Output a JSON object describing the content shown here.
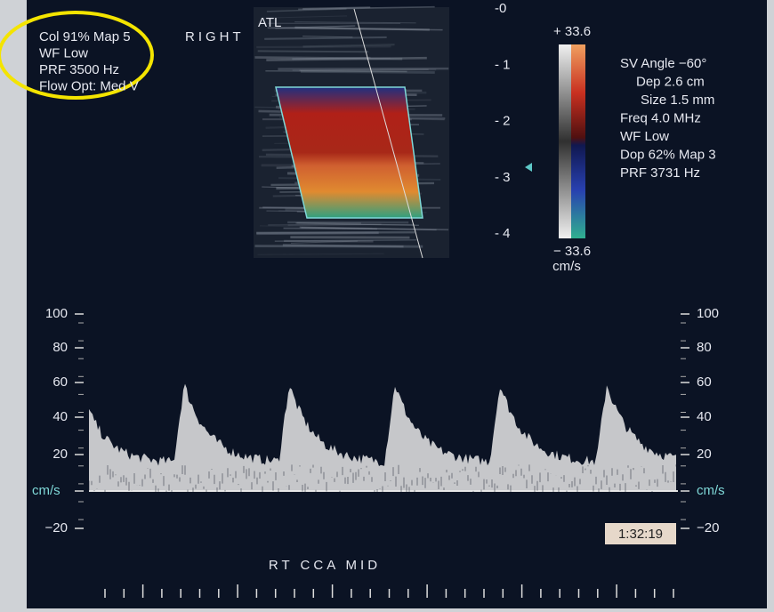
{
  "brand": "ATL",
  "orientation": "RIGHT",
  "left_panel": {
    "lines": [
      "Col 91%  Map 5",
      "WF Low",
      "PRF 3500  Hz",
      "Flow Opt: Med V"
    ]
  },
  "depth_scale": [
    "-0",
    "- 1",
    "- 2",
    "- 3",
    "- 4"
  ],
  "color_scale": {
    "max": "+ 33.6",
    "min": "− 33.6",
    "unit": "cm/s"
  },
  "right_panel": {
    "lines": [
      "SV Angle −60°",
      "Dep 2.6  cm",
      "Size 1.5  mm",
      "Freq 4.0  MHz",
      "WF Low",
      "Dop 62%  Map 3",
      "PRF 3731  Hz"
    ]
  },
  "velocity_scale_left": {
    "labels": [
      "100",
      "80",
      "60",
      "40",
      "20",
      "cm/s",
      "−20"
    ]
  },
  "velocity_scale_right": {
    "labels": [
      "100",
      "80",
      "60",
      "40",
      "20",
      "cm/s",
      "−20"
    ]
  },
  "label": "RT  CCA  MID",
  "time": "1:32:19"
}
